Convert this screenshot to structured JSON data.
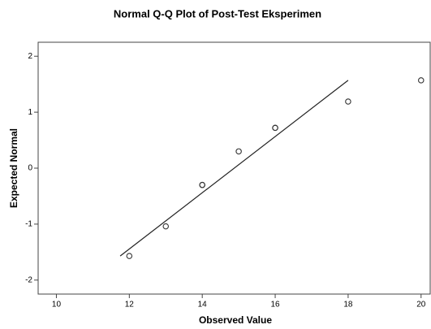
{
  "chart_data": {
    "type": "scatter",
    "title": "Normal Q-Q Plot of Post-Test Eksperimen",
    "x_label": "Observed Value",
    "y_label": "Expected Normal",
    "x": [
      12,
      13,
      14,
      14,
      15,
      16,
      16,
      18,
      20
    ],
    "values": [
      -1.57,
      -1.04,
      -0.3,
      -0.3,
      0.3,
      0.72,
      0.72,
      1.19,
      1.57
    ],
    "color": "#333333",
    "line": {
      "x": [
        11.75,
        18
      ],
      "y": [
        -1.57,
        1.57
      ],
      "color": "#222222"
    },
    "xlim": [
      9.5,
      20.25
    ],
    "xticks": [
      10,
      12,
      14,
      16,
      18,
      20
    ],
    "ylim": [
      -2.25,
      2.25
    ],
    "yticks": [
      -2,
      -1,
      0,
      1,
      2
    ]
  }
}
